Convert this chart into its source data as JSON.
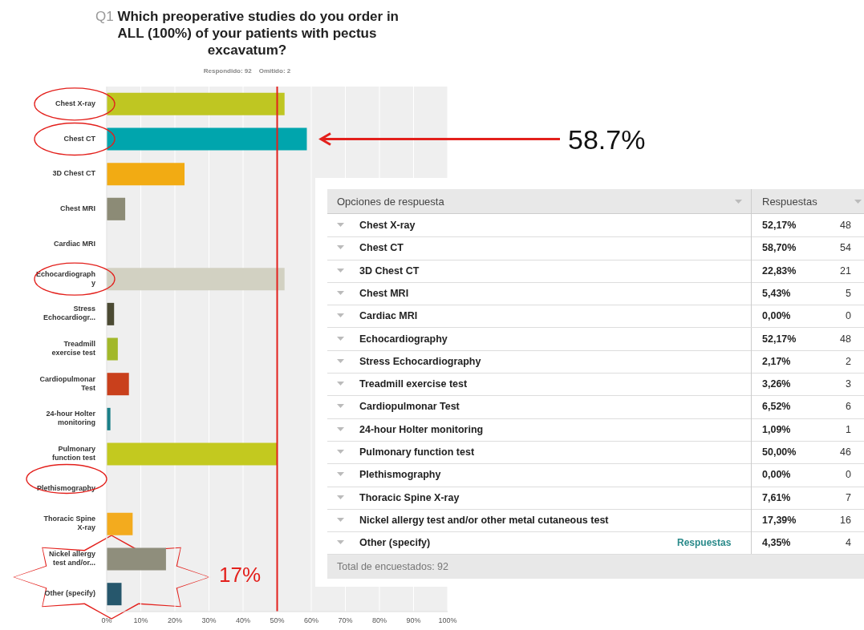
{
  "chart_data": [
    {
      "type": "bar",
      "orientation": "horizontal",
      "title": "Q1 Which preoperative studies do you order in ALL (100%) of your patients with pectus excavatum?",
      "subtitle": "Respondido: 92    Omitido: 2",
      "categories": [
        "Chest X-ray",
        "Chest CT",
        "3D Chest CT",
        "Chest MRI",
        "Cardiac MRI",
        "Echocardiography",
        "Stress Echocardiogr...",
        "Treadmill exercise test",
        "Cardiopulmonar Test",
        "24-hour Holter monitoring",
        "Pulmonary function test",
        "Plethismography",
        "Thoracic Spine X-ray",
        "Nickel allergy test and/or...",
        "Other (specify)"
      ],
      "values": [
        52.17,
        58.7,
        22.83,
        5.43,
        0,
        52.17,
        2.17,
        3.26,
        6.52,
        1.09,
        50.0,
        0,
        7.61,
        17.39,
        4.35
      ],
      "colors": [
        "#bfc622",
        "#00a5ad",
        "#f2ab13",
        "#8c8b76",
        "#8c8b76",
        "#d2d1c2",
        "#4b4a33",
        "#a2b82a",
        "#c9401c",
        "#1a7f88",
        "#c3c91f",
        "#8c8b76",
        "#f3ab1e",
        "#8f8e7c",
        "#26576c"
      ],
      "xlim": [
        0,
        100
      ],
      "xticks": [
        {
          "value": 0,
          "label": "0%"
        },
        {
          "value": 10,
          "label": "10%"
        },
        {
          "value": 20,
          "label": "20%"
        },
        {
          "value": 30,
          "label": "30%"
        },
        {
          "value": 40,
          "label": "40%"
        },
        {
          "value": 50,
          "label": "50%"
        },
        {
          "value": 60,
          "label": "60%"
        },
        {
          "value": 70,
          "label": "70%"
        },
        {
          "value": 80,
          "label": "80%"
        },
        {
          "value": 90,
          "label": "90%"
        },
        {
          "value": 100,
          "label": "100%"
        }
      ],
      "grid": "x",
      "ref_lines": [
        {
          "axis": "x",
          "value": 50,
          "color": "#e3201c"
        }
      ],
      "annotations": [
        "58.7%",
        "17%"
      ]
    },
    {
      "type": "other",
      "categories": [
        "Chest X-ray",
        "Chest CT",
        "3D Chest CT",
        "Chest MRI",
        "Cardiac MRI",
        "Echocardiography",
        "Stress Echocardiography",
        "Treadmill exercise test",
        "Cardiopulmonar Test",
        "24-hour Holter monitoring",
        "Pulmonary function test",
        "Plethismography",
        "Thoracic Spine X-ray",
        "Nickel allergy test and/or other metal cutaneous test",
        "Other (specify)"
      ],
      "series": [
        {
          "values": [
            52.17,
            58.7,
            22.83,
            5.43,
            0,
            52.17,
            2.17,
            3.26,
            6.52,
            1.09,
            50.0,
            0,
            7.61,
            17.39,
            4.35
          ],
          "value_labels": [
            "52,17%",
            "58,70%",
            "22,83%",
            "5,43%",
            "0,00%",
            "52,17%",
            "2,17%",
            "3,26%",
            "6,52%",
            "1,09%",
            "50,00%",
            "0,00%",
            "7,61%",
            "17,39%",
            "4,35%"
          ]
        },
        {
          "values": [
            48,
            54,
            21,
            5,
            0,
            48,
            2,
            3,
            6,
            1,
            46,
            0,
            7,
            16,
            4
          ]
        }
      ],
      "data_labels": true,
      "annotations": [
        "Opciones de respuesta",
        "Respuestas",
        "Respuestas",
        "Total de encuestados: 92"
      ]
    }
  ]
}
